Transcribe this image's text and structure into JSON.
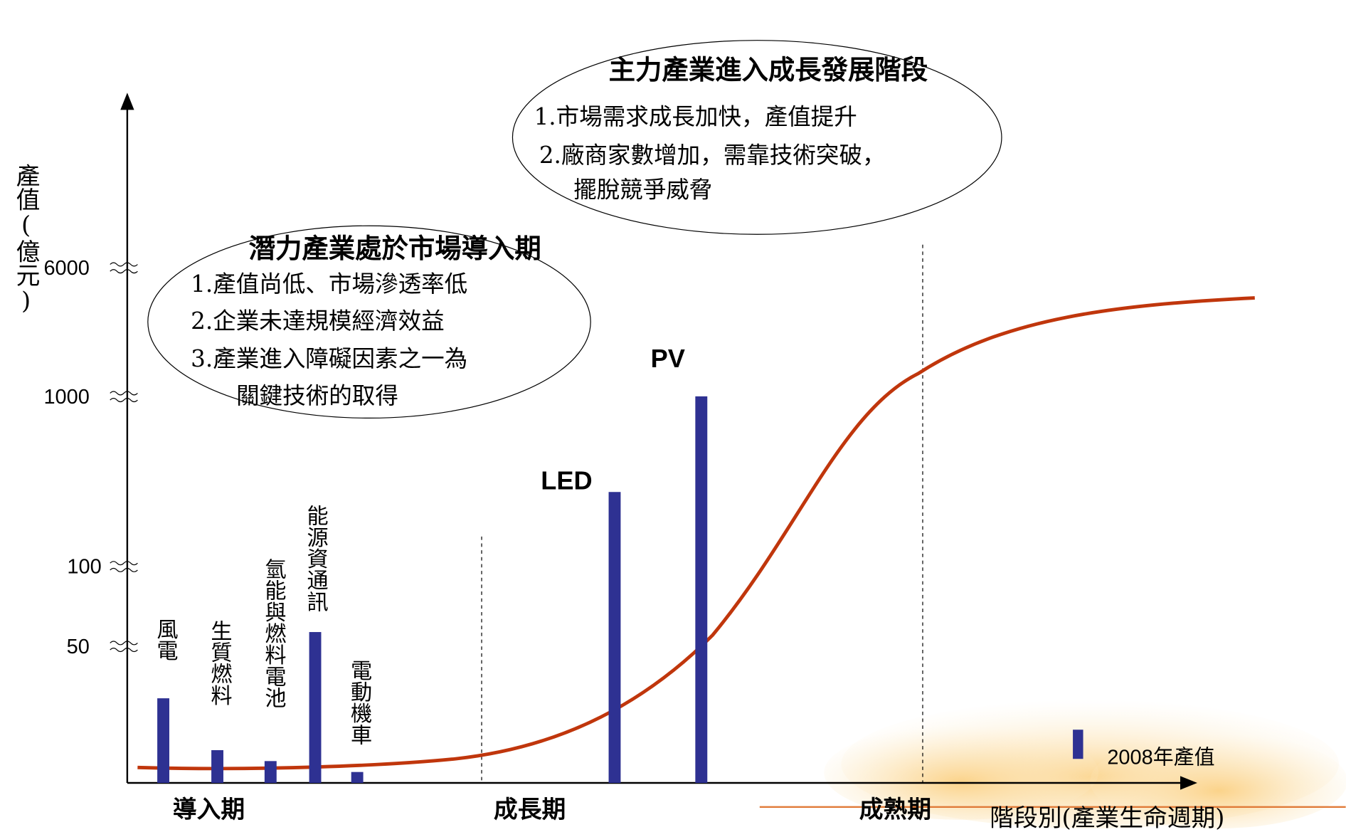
{
  "chart_data": {
    "type": "bar",
    "y_label": "產值(億元)",
    "x_label": "階段別(產業生命週期)",
    "categories": [
      "風電",
      "生質燃料",
      "氫能與燃料電池",
      "能源資通訊",
      "電動機車",
      "LED",
      "PV"
    ],
    "series": [
      {
        "name": "2008年產值",
        "color": "#2e3192",
        "values": [
          31,
          12,
          8,
          59,
          4,
          495,
          1010
        ]
      }
    ],
    "ylim": [
      0,
      6000
    ],
    "yticks": [
      50,
      100,
      1000,
      6000
    ],
    "stages": [
      "導入期",
      "成長期",
      "成熟期"
    ],
    "annotations": [
      {
        "title": "潛力產業處於市場導入期",
        "lines": [
          "1.產值尚低、市場滲透率低",
          "2.企業未達規模經濟效益",
          "3.產業進入障礙因素之一為",
          "關鍵技術的取得"
        ]
      },
      {
        "title": "主力產業進入成長發展階段",
        "lines": [
          "1.市場需求成長加快，產值提升",
          "2.廠商家數增加，需靠技術突破，",
          "擺脫競爭威脅"
        ]
      }
    ]
  }
}
